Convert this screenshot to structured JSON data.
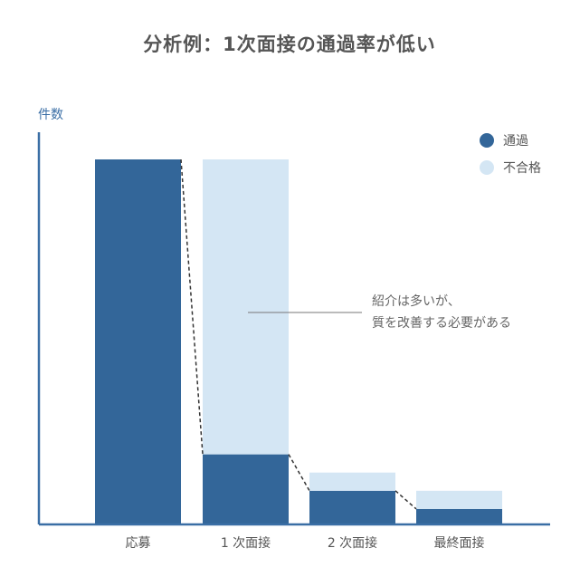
{
  "chart_data": {
    "type": "bar",
    "stacked": true,
    "title": "分析例：1次面接の通過率が低い",
    "ylabel": "件数",
    "xlabel": "",
    "categories": [
      "応募",
      "1 次面接",
      "2 次面接",
      "最終面接"
    ],
    "series": [
      {
        "name": "通過",
        "values": [
          100,
          19,
          9,
          4
        ],
        "color": "#336699"
      },
      {
        "name": "不合格",
        "values": [
          0,
          81,
          5,
          5
        ],
        "color": "#d4e6f4"
      }
    ],
    "ylim": [
      0,
      110
    ],
    "grid": false,
    "legend_position": "top-right",
    "funnel_connectors": true,
    "annotation": {
      "lines": [
        "紹介は多いが、",
        "質を改善する必要がある"
      ],
      "target_category": "1 次面接"
    },
    "axis_color": "#3a6ea5"
  }
}
